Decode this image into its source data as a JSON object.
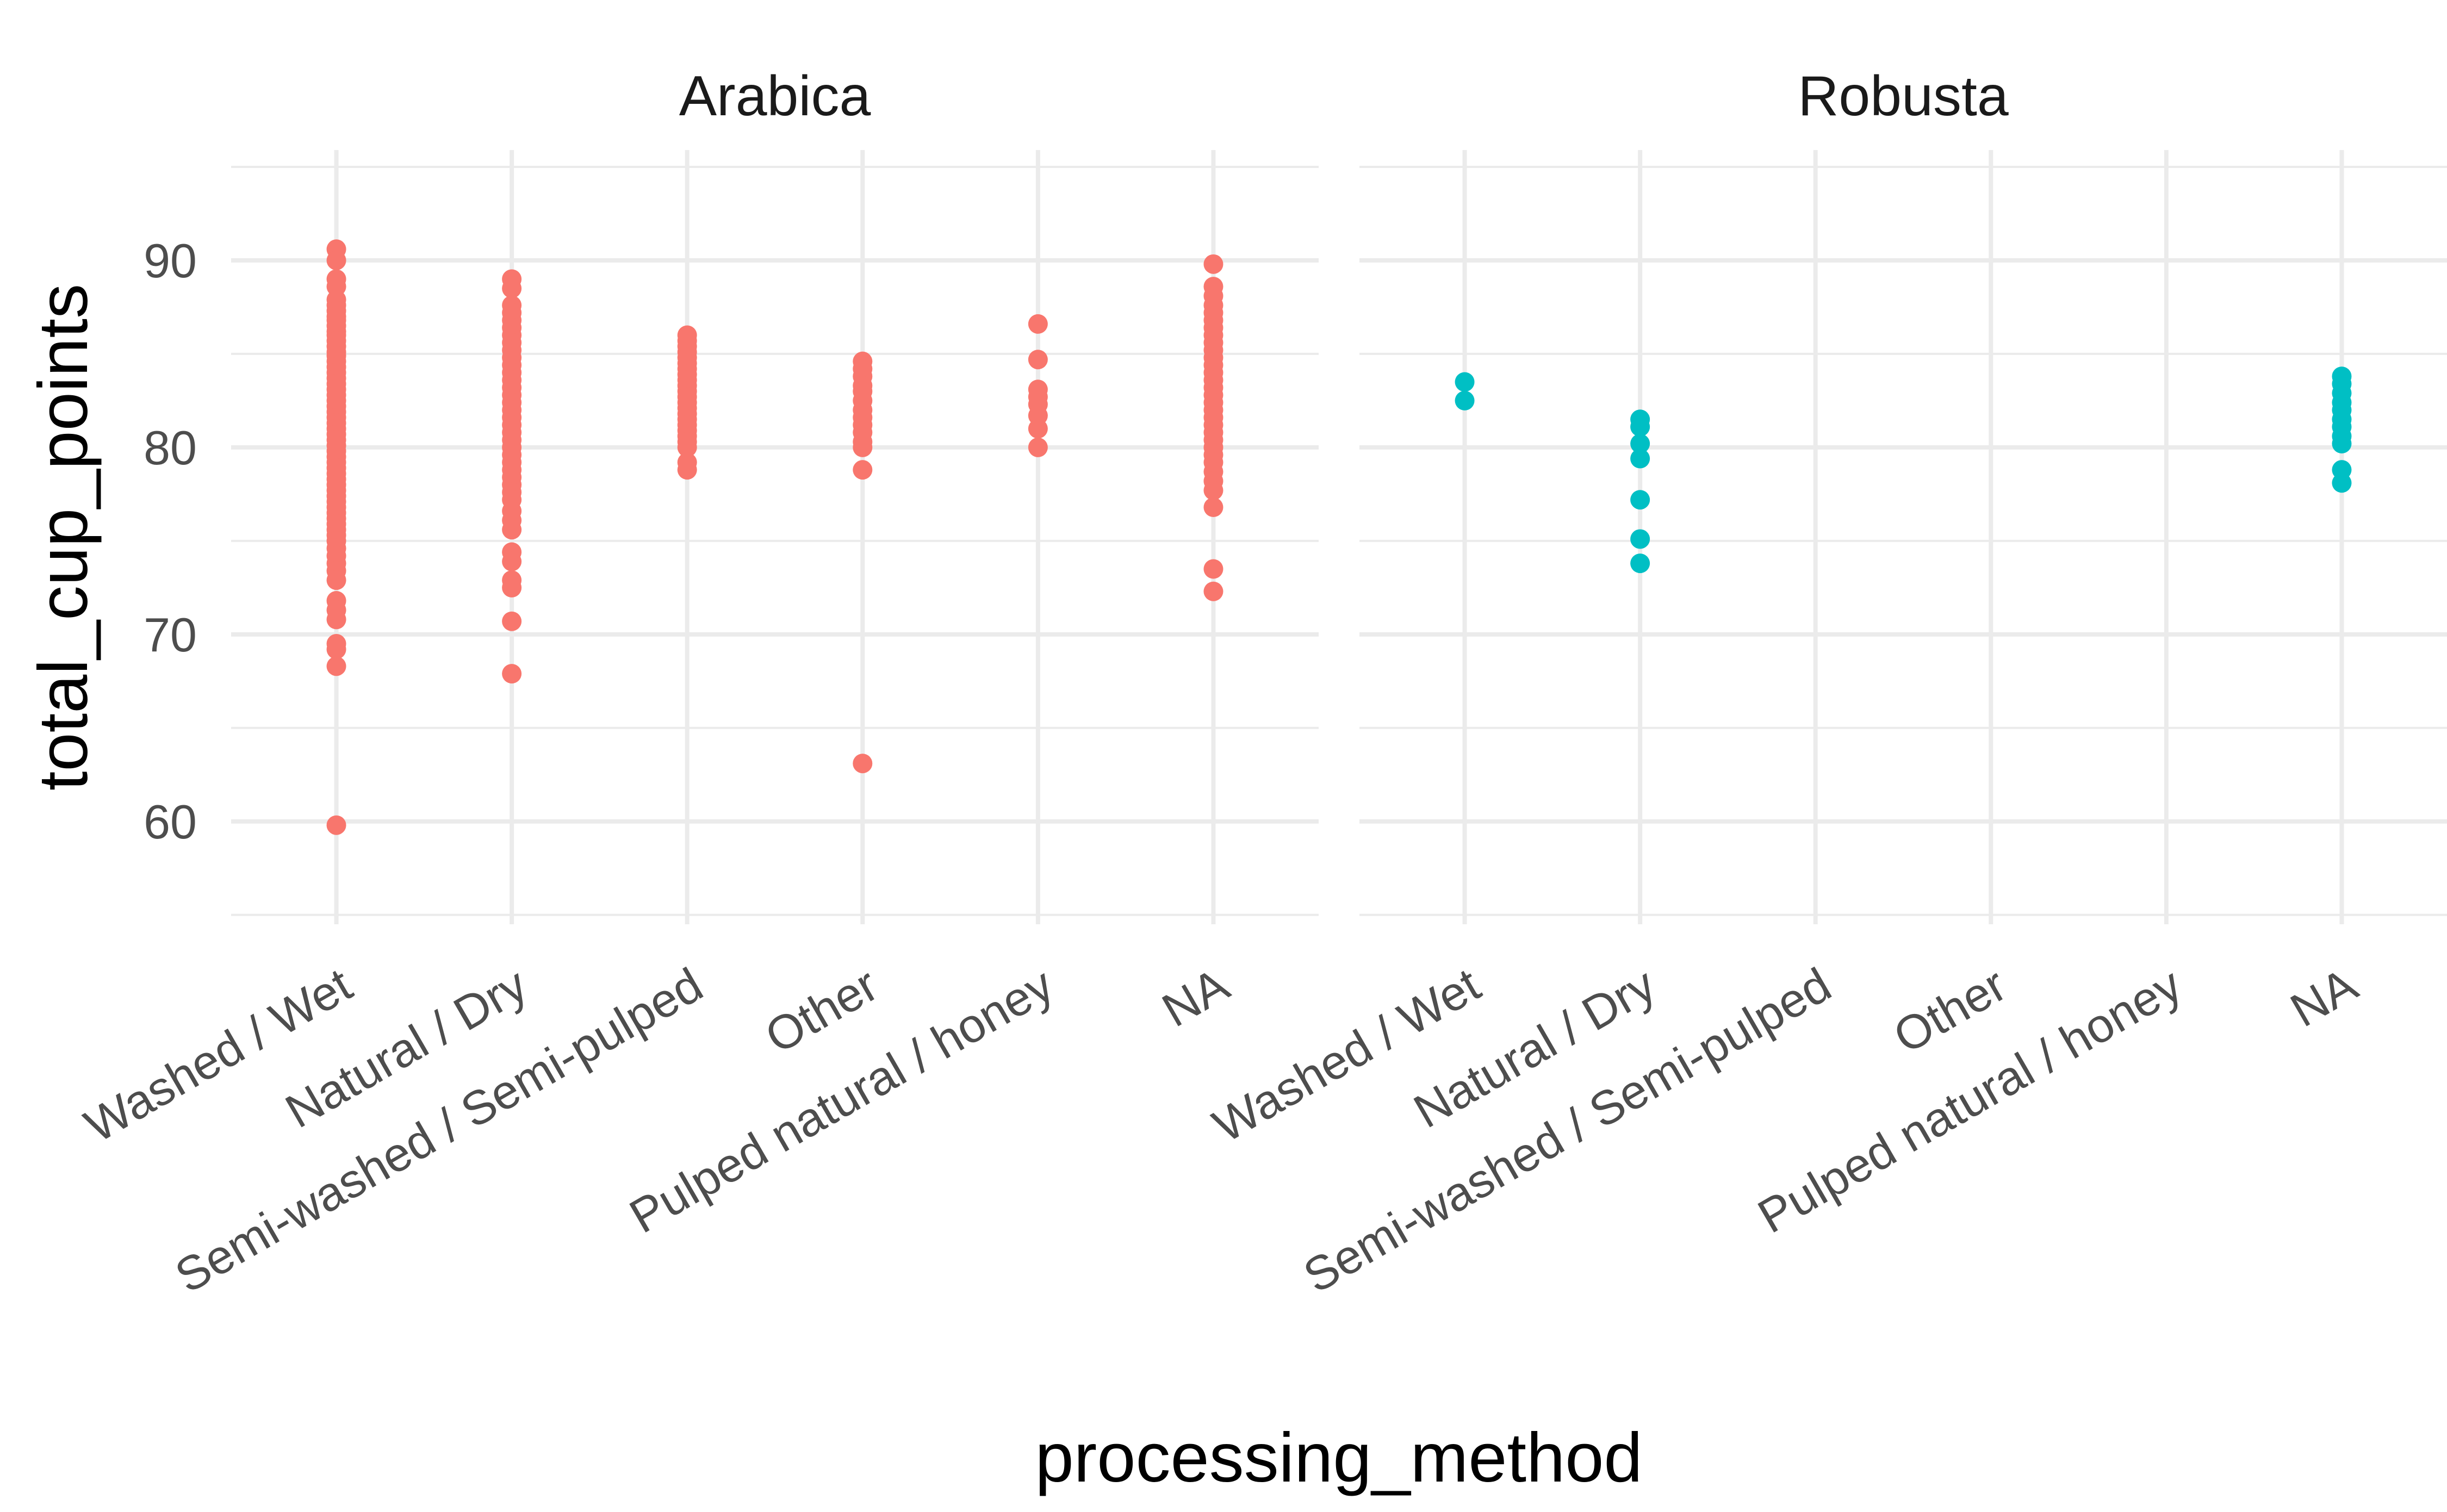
{
  "chart_data": {
    "type": "scatter",
    "xlabel": "processing_method",
    "ylabel": "total_cup_points",
    "categories": [
      "Washed / Wet",
      "Natural / Dry",
      "Semi-washed / Semi-pulped",
      "Other",
      "Pulped natural / honey",
      "NA"
    ],
    "ylim": [
      54.5,
      95.9
    ],
    "yticks": [
      60,
      70,
      80,
      90
    ],
    "grid": true,
    "legend": "none",
    "facets": [
      {
        "label": "Arabica",
        "color": "#F8766D",
        "points": [
          {
            "x": "Washed / Wet",
            "y": [
              90.6,
              90.0,
              89.0,
              88.6,
              87.9,
              87.6,
              87.3,
              87.0,
              86.8,
              86.5,
              86.2,
              86.0,
              85.7,
              85.4,
              85.1,
              84.9,
              84.6,
              84.3,
              84.0,
              83.7,
              83.4,
              83.1,
              82.8,
              82.5,
              82.2,
              81.9,
              81.6,
              81.3,
              81.0,
              80.7,
              80.4,
              80.1,
              79.8,
              79.5,
              79.2,
              78.9,
              78.6,
              78.3,
              78.0,
              77.7,
              77.4,
              77.1,
              76.8,
              76.5,
              76.2,
              75.9,
              75.6,
              75.3,
              75.0,
              74.6,
              74.2,
              73.8,
              73.4,
              72.9,
              71.8,
              71.3,
              70.8,
              69.5,
              69.2,
              68.3,
              59.8
            ]
          },
          {
            "x": "Natural / Dry",
            "y": [
              89.0,
              88.5,
              87.6,
              87.2,
              86.8,
              86.4,
              86.0,
              85.6,
              85.2,
              84.8,
              84.4,
              84.0,
              83.6,
              83.2,
              82.8,
              82.4,
              82.0,
              81.6,
              81.2,
              80.8,
              80.4,
              80.0,
              79.6,
              79.2,
              78.8,
              78.4,
              78.0,
              77.6,
              77.2,
              76.6,
              76.1,
              75.6,
              74.4,
              73.9,
              72.9,
              72.5,
              70.7,
              67.9
            ]
          },
          {
            "x": "Semi-washed / Semi-pulped",
            "y": [
              86.0,
              85.7,
              85.4,
              85.1,
              84.8,
              84.5,
              84.2,
              83.9,
              83.6,
              83.3,
              83.0,
              82.7,
              82.4,
              82.1,
              81.8,
              81.5,
              81.2,
              80.9,
              80.6,
              80.3,
              80.0,
              79.2,
              78.8
            ]
          },
          {
            "x": "Other",
            "y": [
              84.6,
              84.2,
              83.8,
              83.3,
              83.0,
              82.5,
              82.0,
              81.6,
              81.2,
              80.8,
              80.3,
              80.0,
              78.8,
              63.1
            ]
          },
          {
            "x": "Pulped natural / honey",
            "y": [
              86.6,
              84.7,
              83.1,
              82.7,
              82.3,
              81.7,
              81.0,
              80.0
            ]
          },
          {
            "x": "NA",
            "y": [
              89.8,
              88.6,
              88.1,
              87.6,
              87.2,
              86.8,
              86.4,
              86.0,
              85.6,
              85.2,
              84.8,
              84.4,
              84.0,
              83.6,
              83.2,
              82.8,
              82.4,
              82.0,
              81.6,
              81.2,
              80.8,
              80.4,
              80.0,
              79.6,
              79.2,
              78.7,
              78.2,
              77.7,
              76.8,
              73.5,
              72.3
            ]
          }
        ]
      },
      {
        "label": "Robusta",
        "color": "#00BFC4",
        "points": [
          {
            "x": "Washed / Wet",
            "y": [
              83.5,
              82.5
            ]
          },
          {
            "x": "Natural / Dry",
            "y": [
              81.5,
              81.1,
              80.2,
              79.4,
              77.2,
              75.1,
              73.8
            ]
          },
          {
            "x": "NA",
            "y": [
              83.8,
              83.4,
              82.9,
              82.4,
              82.0,
              81.5,
              81.1,
              80.6,
              80.2,
              78.8,
              78.1
            ]
          }
        ]
      }
    ]
  }
}
